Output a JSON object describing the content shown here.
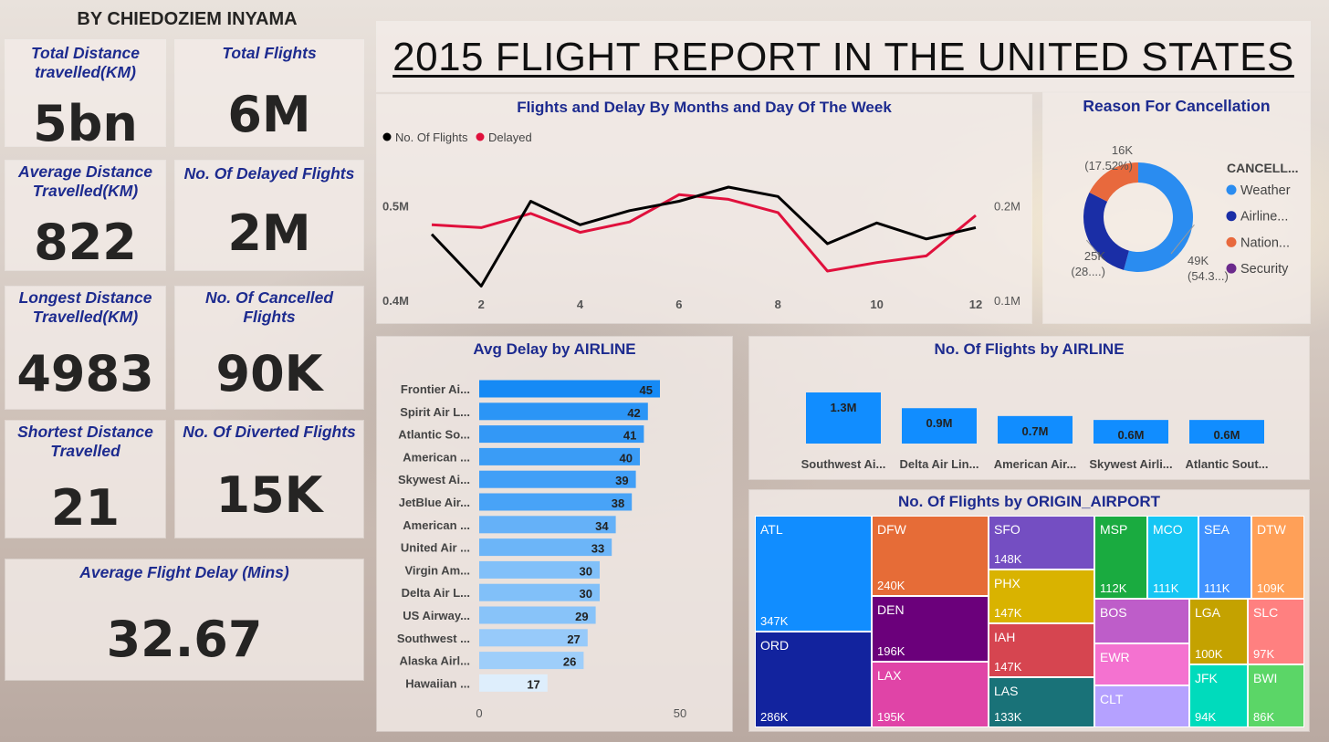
{
  "author": "BY CHIEDOZIEM INYAMA",
  "report_title": "2015 FLIGHT REPORT IN THE UNITED STATES",
  "kpis": {
    "total_distance": {
      "title": "Total Distance travelled(KM)",
      "value": "5bn"
    },
    "total_flights": {
      "title": "Total Flights",
      "value": "6M"
    },
    "avg_distance": {
      "title": "Average Distance Travelled(KM)",
      "value": "822"
    },
    "delayed_flights": {
      "title": "No. Of Delayed Flights",
      "value": "2M"
    },
    "longest_distance": {
      "title": "Longest Distance Travelled(KM)",
      "value": "4983"
    },
    "cancelled_flights": {
      "title": "No. Of Cancelled Flights",
      "value": "90K"
    },
    "shortest_distance": {
      "title": "Shortest Distance Travelled",
      "value": "21"
    },
    "diverted_flights": {
      "title": "No. Of Diverted Flights",
      "value": "15K"
    },
    "avg_delay": {
      "title": "Average Flight Delay (Mins)",
      "value": "32.67"
    }
  },
  "chart_data": [
    {
      "id": "monthly",
      "type": "line",
      "title": "Flights and Delay By Months and Day Of The Week",
      "x": [
        1,
        2,
        3,
        4,
        5,
        6,
        7,
        8,
        9,
        10,
        11,
        12
      ],
      "x_ticks": [
        2,
        4,
        6,
        8,
        10,
        12
      ],
      "series": [
        {
          "name": "No. Of Flights",
          "color": "#000000",
          "axis": "left",
          "values": [
            0.47,
            0.415,
            0.505,
            0.48,
            0.495,
            0.505,
            0.52,
            0.51,
            0.46,
            0.482,
            0.465,
            0.477
          ]
        },
        {
          "name": "Delayed",
          "color": "#e0103c",
          "axis": "right",
          "values": [
            0.18,
            0.177,
            0.192,
            0.172,
            0.183,
            0.212,
            0.207,
            0.193,
            0.131,
            0.14,
            0.147,
            0.19
          ]
        }
      ],
      "y_left": {
        "range": [
          0.4,
          0.55
        ],
        "ticks": [
          {
            "v": 0.4,
            "label": "0.4M"
          },
          {
            "v": 0.5,
            "label": "0.5M"
          }
        ]
      },
      "y_right": {
        "range": [
          0.1,
          0.25
        ],
        "ticks": [
          {
            "v": 0.1,
            "label": "0.1M"
          },
          {
            "v": 0.2,
            "label": "0.2M"
          }
        ]
      }
    },
    {
      "id": "cancellation",
      "type": "pie",
      "title": "Reason For Cancellation",
      "legend_title": "CANCELL...",
      "slices": [
        {
          "name": "Weather",
          "legend": "Weather",
          "value": 49,
          "pct": 54.3,
          "label": "49K",
          "pct_label": "(54.3...)",
          "color": "#2a8cf0"
        },
        {
          "name": "Airline",
          "legend": "Airline...",
          "value": 25,
          "pct": 28.2,
          "label": "25K",
          "pct_label": "(28....)",
          "color": "#1a2ea6"
        },
        {
          "name": "National Air System",
          "legend": "Nation...",
          "value": 16,
          "pct": 17.52,
          "label": "16K",
          "pct_label": "(17.52%)",
          "color": "#e8693d"
        },
        {
          "name": "Security",
          "legend": "Security",
          "value": 0.02,
          "pct": 0.02,
          "label": "",
          "pct_label": "",
          "color": "#6b2a8c"
        }
      ]
    },
    {
      "id": "avg_delay_airline",
      "type": "bar",
      "orientation": "horizontal",
      "title": "Avg Delay by AIRLINE",
      "categories": [
        "Frontier Ai...",
        "Spirit Air L...",
        "Atlantic So...",
        "American ...",
        "Skywest Ai...",
        "JetBlue Air...",
        "American ...",
        "United Air ...",
        "Virgin Am...",
        "Delta Air L...",
        "US Airway...",
        "Southwest ...",
        "Alaska Airl...",
        "Hawaiian ..."
      ],
      "values": [
        45,
        42,
        41,
        40,
        39,
        38,
        34,
        33,
        30,
        30,
        29,
        27,
        26,
        17
      ],
      "xlim": [
        0,
        50
      ],
      "x_ticks": [
        0,
        50
      ]
    },
    {
      "id": "flights_airline",
      "type": "bar",
      "title": "No. Of Flights by AIRLINE",
      "categories": [
        "Southwest Ai...",
        "Delta Air Lin...",
        "American Air...",
        "Skywest Airli...",
        "Atlantic Sout..."
      ],
      "values": [
        1.3,
        0.9,
        0.7,
        0.6,
        0.6
      ],
      "labels": [
        "1.3M",
        "0.9M",
        "0.7M",
        "0.6M",
        "0.6M"
      ],
      "ylim": [
        0,
        1.3
      ]
    },
    {
      "id": "origin_airport",
      "type": "treemap",
      "title": "No. Of Flights by ORIGIN_AIRPORT",
      "cells": [
        {
          "code": "ATL",
          "value": 347,
          "label": "347K",
          "color": "#118dff"
        },
        {
          "code": "ORD",
          "value": 286,
          "label": "286K",
          "color": "#12239e"
        },
        {
          "code": "DFW",
          "value": 240,
          "label": "240K",
          "color": "#e66c37"
        },
        {
          "code": "DEN",
          "value": 196,
          "label": "196K",
          "color": "#6b007b"
        },
        {
          "code": "LAX",
          "value": 195,
          "label": "195K",
          "color": "#e044a7"
        },
        {
          "code": "SFO",
          "value": 148,
          "label": "148K",
          "color": "#744ec2"
        },
        {
          "code": "PHX",
          "value": 147,
          "label": "147K",
          "color": "#d9b300"
        },
        {
          "code": "IAH",
          "value": 147,
          "label": "147K",
          "color": "#d64550"
        },
        {
          "code": "LAS",
          "value": 133,
          "label": "133K",
          "color": "#197278"
        },
        {
          "code": "MSP",
          "value": 112,
          "label": "112K",
          "color": "#1aab40"
        },
        {
          "code": "MCO",
          "value": 111,
          "label": "111K",
          "color": "#15c6f4"
        },
        {
          "code": "SEA",
          "value": 111,
          "label": "111K",
          "color": "#4092ff"
        },
        {
          "code": "DTW",
          "value": 109,
          "label": "109K",
          "color": "#ffa058"
        },
        {
          "code": "BOS",
          "value": 0,
          "label": "",
          "color": "#be5dc9"
        },
        {
          "code": "EWR",
          "value": 0,
          "label": "",
          "color": "#f472d0"
        },
        {
          "code": "CLT",
          "value": 0,
          "label": "",
          "color": "#b5a1ff"
        },
        {
          "code": "LGA",
          "value": 100,
          "label": "100K",
          "color": "#c4a200"
        },
        {
          "code": "SLC",
          "value": 97,
          "label": "97K",
          "color": "#ff8080"
        },
        {
          "code": "JFK",
          "value": 94,
          "label": "94K",
          "color": "#00dbbc"
        },
        {
          "code": "BWI",
          "value": 86,
          "label": "86K",
          "color": "#5bd667"
        }
      ]
    }
  ]
}
